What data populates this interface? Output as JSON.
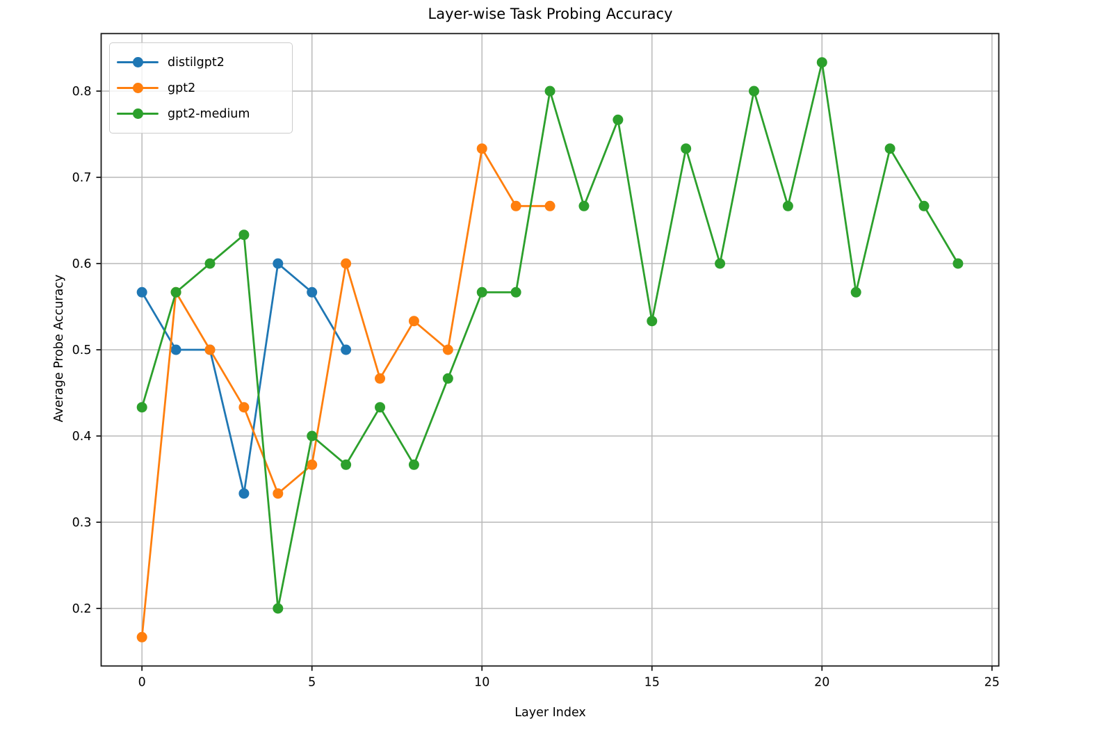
{
  "chart_data": {
    "type": "line",
    "title": "Layer-wise Task Probing Accuracy",
    "xlabel": "Layer Index",
    "ylabel": "Average Probe Accuracy",
    "xlim": [
      -1.2,
      25.2
    ],
    "ylim": [
      0.1333,
      0.8667
    ],
    "grid": true,
    "grid_color": "#b9b9b9",
    "spine_color": "#1a1a1a",
    "legend_position": "upper left",
    "x_ticks": [
      0,
      5,
      10,
      15,
      20,
      25
    ],
    "x_tick_labels": [
      "0",
      "5",
      "10",
      "15",
      "20",
      "25"
    ],
    "y_ticks": [
      0.2,
      0.3,
      0.4,
      0.5,
      0.6,
      0.7,
      0.8
    ],
    "y_tick_labels": [
      "0.2",
      "0.3",
      "0.4",
      "0.5",
      "0.6",
      "0.7",
      "0.8"
    ],
    "series": [
      {
        "name": "distilgpt2",
        "color": "#1f77b4",
        "x": [
          0,
          1,
          2,
          3,
          4,
          5,
          6
        ],
        "values": [
          0.5667,
          0.5,
          0.5,
          0.3333,
          0.6,
          0.5667,
          0.5
        ]
      },
      {
        "name": "gpt2",
        "color": "#ff7f0e",
        "x": [
          0,
          1,
          2,
          3,
          4,
          5,
          6,
          7,
          8,
          9,
          10,
          11,
          12
        ],
        "values": [
          0.1667,
          0.5667,
          0.5,
          0.4333,
          0.3333,
          0.3667,
          0.6,
          0.4667,
          0.5333,
          0.5,
          0.7333,
          0.6667,
          0.6667
        ]
      },
      {
        "name": "gpt2-medium",
        "color": "#2ca02c",
        "x": [
          0,
          1,
          2,
          3,
          4,
          5,
          6,
          7,
          8,
          9,
          10,
          11,
          12,
          13,
          14,
          15,
          16,
          17,
          18,
          19,
          20,
          21,
          22,
          23,
          24
        ],
        "values": [
          0.4333,
          0.5667,
          0.6,
          0.6333,
          0.2,
          0.4,
          0.3667,
          0.4333,
          0.3667,
          0.4667,
          0.5667,
          0.5667,
          0.8,
          0.6667,
          0.7667,
          0.5333,
          0.7333,
          0.6,
          0.8,
          0.6667,
          0.8333,
          0.5667,
          0.7333,
          0.6667,
          0.6
        ]
      }
    ]
  }
}
